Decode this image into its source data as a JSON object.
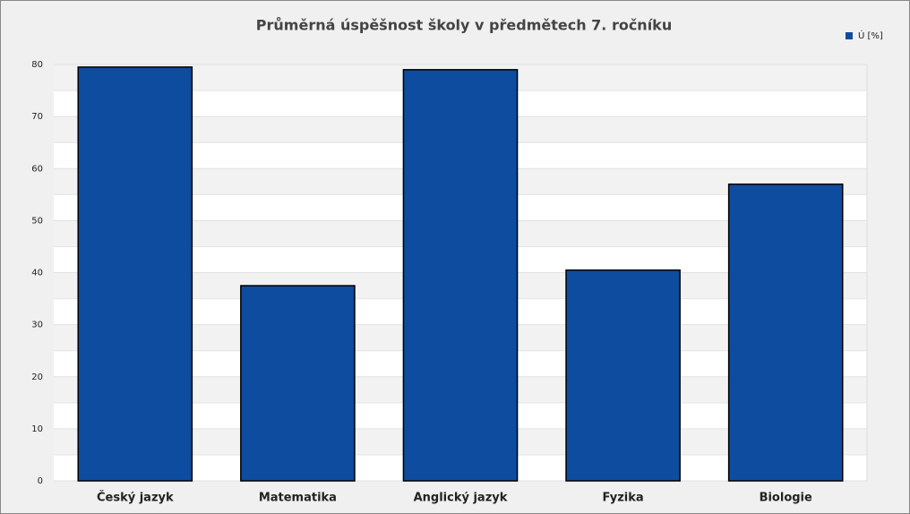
{
  "chart_data": {
    "type": "bar",
    "title": "Průměrná úspěšnost školy v předmětech 7. ročníku",
    "categories": [
      "Český jazyk",
      "Matematika",
      "Anglický jazyk",
      "Fyzika",
      "Biologie"
    ],
    "series": [
      {
        "name": "Ú [%]",
        "color": "#0d4c9e",
        "values": [
          79.5,
          37.5,
          79,
          40.5,
          57
        ]
      }
    ],
    "ylim": [
      0,
      80
    ],
    "yticks": [
      0,
      10,
      20,
      30,
      40,
      50,
      60,
      70,
      80
    ],
    "grid": true,
    "legend": "top-right"
  }
}
